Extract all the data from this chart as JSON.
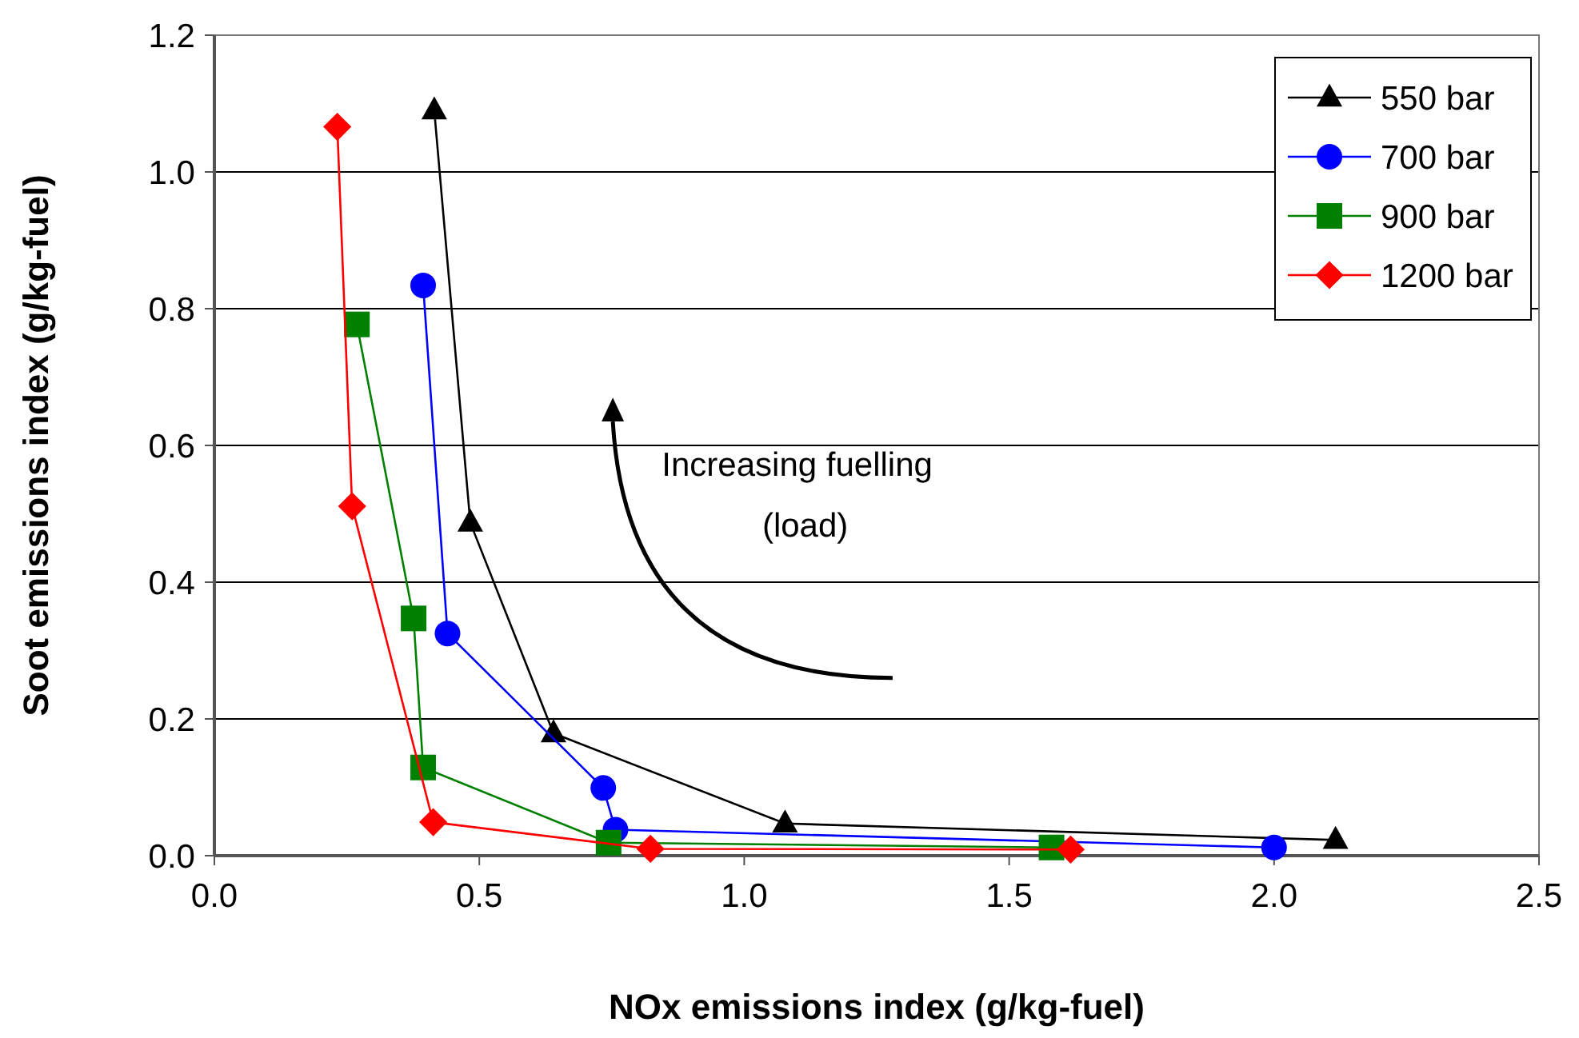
{
  "chart_data": {
    "type": "line",
    "xlabel": "NOx emissions index (g/kg-fuel)",
    "ylabel": "Soot emissions index (g/kg-fuel)",
    "xlim": [
      0,
      2.5
    ],
    "xticks": [
      {
        "value": 0,
        "label": "0.0"
      },
      {
        "value": 0.5,
        "label": "0.5"
      },
      {
        "value": 1,
        "label": "1.0"
      },
      {
        "value": 1.5,
        "label": "1.5"
      },
      {
        "value": 2,
        "label": "2.0"
      },
      {
        "value": 2.5,
        "label": "2.5"
      }
    ],
    "ylim": [
      0,
      1.2
    ],
    "yticks": [
      {
        "value": 0,
        "label": "0.0"
      },
      {
        "value": 0.2,
        "label": "0.2"
      },
      {
        "value": 0.4,
        "label": "0.4"
      },
      {
        "value": 0.6,
        "label": "0.6"
      },
      {
        "value": 0.8,
        "label": "0.8"
      },
      {
        "value": 1,
        "label": "1.0"
      },
      {
        "value": 1.2,
        "label": "1.2"
      }
    ],
    "grid": "y",
    "legend": "top right",
    "line_style": "solid",
    "annotations": [
      "Increasing fuelling\n(load)"
    ],
    "series": [
      {
        "name": "550 bar",
        "color": "#000000",
        "marker": "triangle",
        "x": [
          0.415,
          0.483,
          0.64,
          1.077,
          2.116
        ],
        "values": [
          1.09,
          0.487,
          0.179,
          0.047,
          0.023
        ]
      },
      {
        "name": "700 bar",
        "color": "#0000ff",
        "marker": "circle",
        "x": [
          0.394,
          0.44,
          0.734,
          0.757,
          2.0
        ],
        "values": [
          0.834,
          0.325,
          0.099,
          0.038,
          0.012
        ]
      },
      {
        "name": "900 bar",
        "color": "#008000",
        "marker": "square",
        "x": [
          0.269,
          0.376,
          0.394,
          0.744,
          1.58
        ],
        "values": [
          0.777,
          0.347,
          0.129,
          0.019,
          0.012
        ]
      },
      {
        "name": "1200 bar",
        "color": "#ff0000",
        "marker": "diamond",
        "x": [
          0.232,
          0.26,
          0.413,
          0.823,
          1.616
        ],
        "values": [
          1.066,
          0.511,
          0.049,
          0.01,
          0.009
        ]
      }
    ]
  }
}
